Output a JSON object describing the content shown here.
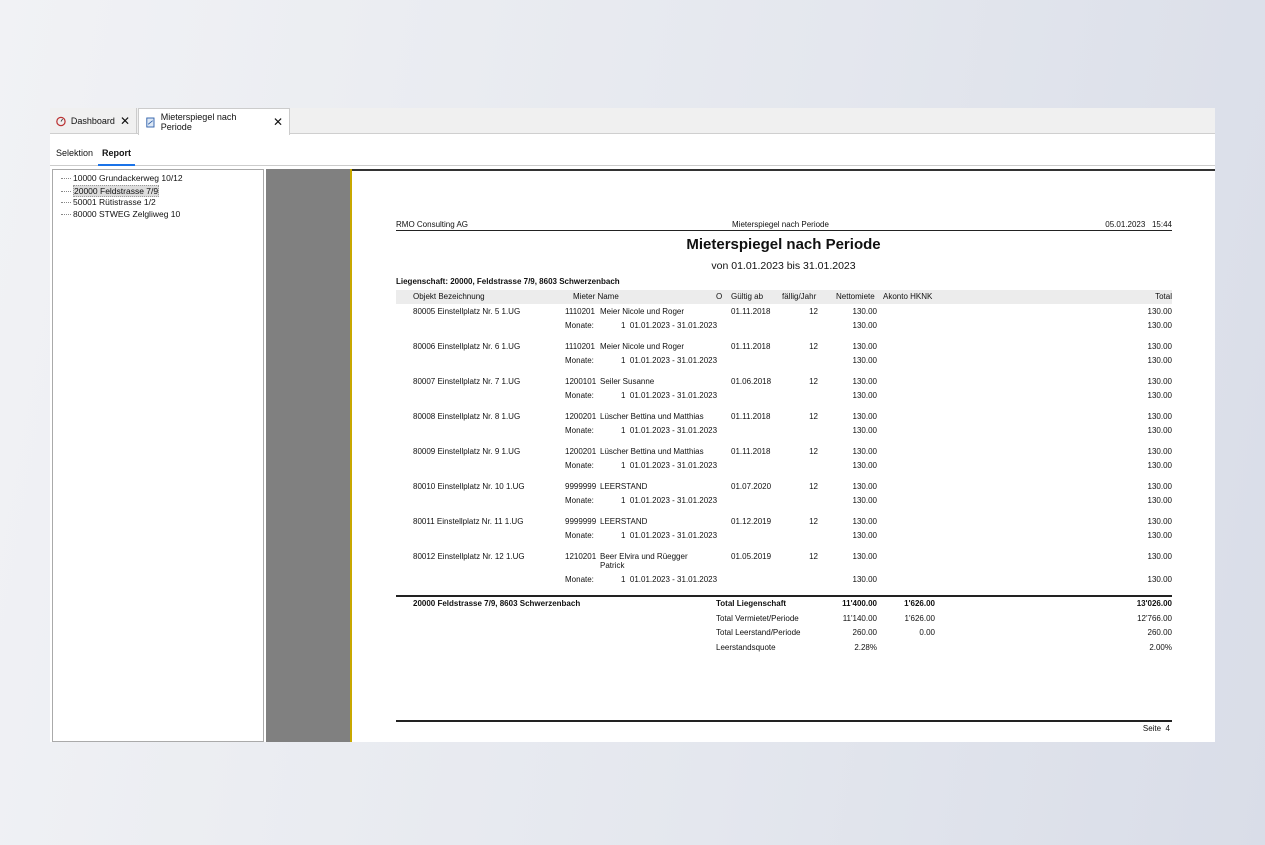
{
  "tabs": [
    {
      "label": "Dashboard",
      "icon": "dashboard-icon"
    },
    {
      "label": "Mieterspiegel nach Periode",
      "icon": "report-icon"
    }
  ],
  "subtabs": [
    "Selektion",
    "Report"
  ],
  "tree": [
    "10000 Grundackerweg 10/12",
    "20000 Feldstrasse 7/9",
    "50001 Rütistrasse 1/2",
    "80000 STWEG Zelgliweg 10"
  ],
  "tree_selected": 1,
  "report": {
    "company": "RMO Consulting AG",
    "header_title": "Mieterspiegel nach Periode",
    "datetime": "05.01.2023   15:44",
    "title": "Mieterspiegel nach Periode",
    "subtitle": "von 01.01.2023 bis 31.01.2023",
    "property": "Liegenschaft: 20000, Feldstrasse 7/9, 8603 Schwerzenbach",
    "columns": [
      "Objekt Bezeichnung",
      "Mieter Name",
      "O",
      "Gültig ab",
      "fällig/Jahr",
      "Nettomiete",
      "Akonto HKNK",
      "Total"
    ],
    "rows": [
      {
        "objekt": "80005 Einstellplatz Nr. 5 1.UG",
        "mieter_nr": "1110201",
        "mieter": "Meier Nicole und Roger",
        "gueltig": "01.11.2018",
        "faellig": "12",
        "netto": "130.00",
        "total": "130.00",
        "monate_label": "Monate:",
        "monate": "1  01.01.2023 - 31.01.2023",
        "m_netto": "130.00",
        "m_total": "130.00"
      },
      {
        "objekt": "80006 Einstellplatz Nr. 6 1.UG",
        "mieter_nr": "1110201",
        "mieter": "Meier Nicole und Roger",
        "gueltig": "01.11.2018",
        "faellig": "12",
        "netto": "130.00",
        "total": "130.00",
        "monate_label": "Monate:",
        "monate": "1  01.01.2023 - 31.01.2023",
        "m_netto": "130.00",
        "m_total": "130.00"
      },
      {
        "objekt": "80007 Einstellplatz Nr. 7 1.UG",
        "mieter_nr": "1200101",
        "mieter": "Seiler Susanne",
        "gueltig": "01.06.2018",
        "faellig": "12",
        "netto": "130.00",
        "total": "130.00",
        "monate_label": "Monate:",
        "monate": "1  01.01.2023 - 31.01.2023",
        "m_netto": "130.00",
        "m_total": "130.00"
      },
      {
        "objekt": "80008 Einstellplatz Nr. 8 1.UG",
        "mieter_nr": "1200201",
        "mieter": "Lüscher Bettina und Matthias",
        "gueltig": "01.11.2018",
        "faellig": "12",
        "netto": "130.00",
        "total": "130.00",
        "monate_label": "Monate:",
        "monate": "1  01.01.2023 - 31.01.2023",
        "m_netto": "130.00",
        "m_total": "130.00"
      },
      {
        "objekt": "80009 Einstellplatz Nr. 9 1.UG",
        "mieter_nr": "1200201",
        "mieter": "Lüscher Bettina und Matthias",
        "gueltig": "01.11.2018",
        "faellig": "12",
        "netto": "130.00",
        "total": "130.00",
        "monate_label": "Monate:",
        "monate": "1  01.01.2023 - 31.01.2023",
        "m_netto": "130.00",
        "m_total": "130.00"
      },
      {
        "objekt": "80010 Einstellplatz Nr. 10 1.UG",
        "mieter_nr": "9999999",
        "mieter": "LEERSTAND",
        "gueltig": "01.07.2020",
        "faellig": "12",
        "netto": "130.00",
        "total": "130.00",
        "monate_label": "Monate:",
        "monate": "1  01.01.2023 - 31.01.2023",
        "m_netto": "130.00",
        "m_total": "130.00"
      },
      {
        "objekt": "80011 Einstellplatz Nr. 11 1.UG",
        "mieter_nr": "9999999",
        "mieter": "LEERSTAND",
        "gueltig": "01.12.2019",
        "faellig": "12",
        "netto": "130.00",
        "total": "130.00",
        "monate_label": "Monate:",
        "monate": "1  01.01.2023 - 31.01.2023",
        "m_netto": "130.00",
        "m_total": "130.00"
      },
      {
        "objekt": "80012 Einstellplatz Nr. 12 1.UG",
        "mieter_nr": "1210201",
        "mieter": "Beer Elvira und Rüegger",
        "mieter2": "Patrick",
        "gueltig": "01.05.2019",
        "faellig": "12",
        "netto": "130.00",
        "total": "130.00",
        "monate_label": "Monate:",
        "monate": "1  01.01.2023 - 31.01.2023",
        "m_netto": "130.00",
        "m_total": "130.00"
      }
    ],
    "summary_property": "20000  Feldstrasse 7/9, 8603 Schwerzenbach",
    "totals": [
      {
        "label": "Total Liegenschaft",
        "netto": "11'400.00",
        "akonto": "1'626.00",
        "total": "13'026.00",
        "bold": true
      },
      {
        "label": "Total Vermietet/Periode",
        "netto": "11'140.00",
        "akonto": "1'626.00",
        "total": "12'766.00"
      },
      {
        "label": "Total Leerstand/Periode",
        "netto": "260.00",
        "akonto": "0.00",
        "total": "260.00"
      },
      {
        "label": "Leerstandsquote",
        "netto": "2.28%",
        "akonto": "",
        "total": "2.00%"
      }
    ],
    "page": "Seite  4"
  }
}
